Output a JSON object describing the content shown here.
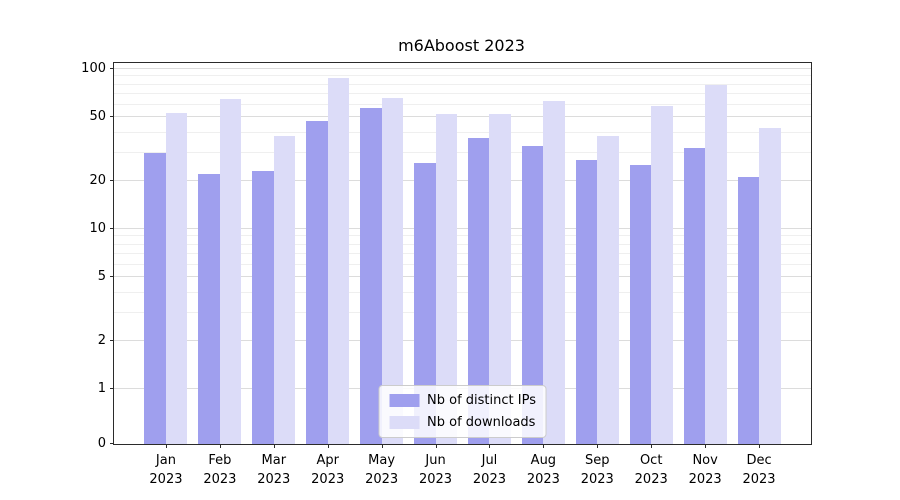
{
  "chart_data": {
    "type": "bar",
    "title": "m6Aboost 2023",
    "scale": "symlog",
    "grid": "horizontal",
    "legend_position": "lower center",
    "categories": [
      "Jan\n2023",
      "Feb\n2023",
      "Mar\n2023",
      "Apr\n2023",
      "May\n2023",
      "Jun\n2023",
      "Jul\n2023",
      "Aug\n2023",
      "Sep\n2023",
      "Oct\n2023",
      "Nov\n2023",
      "Dec\n2023"
    ],
    "series": [
      {
        "name": "Nb of distinct IPs",
        "color": "#9f9fee",
        "values": [
          30,
          22,
          23,
          47,
          57,
          26,
          37,
          33,
          27,
          25,
          32,
          21
        ]
      },
      {
        "name": "Nb of downloads",
        "color": "#dcdcf8",
        "values": [
          53,
          65,
          38,
          88,
          66,
          52,
          52,
          63,
          38,
          59,
          79,
          43
        ]
      }
    ],
    "yticks": [
      0,
      1,
      2,
      5,
      10,
      20,
      50,
      100
    ],
    "minor_yticks": [
      3,
      4,
      6,
      7,
      8,
      9,
      30,
      40,
      60,
      70,
      80,
      90
    ],
    "ylim": [
      0,
      110
    ],
    "axis_color": "#2b2b2b",
    "grid_major_color": "#dcdcdc",
    "grid_minor_color": "#efefef"
  }
}
